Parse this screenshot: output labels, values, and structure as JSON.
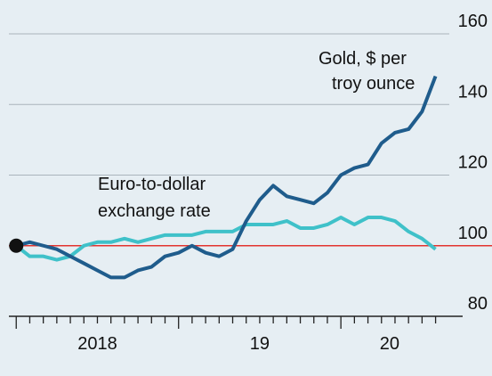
{
  "chart_data": {
    "type": "line",
    "x": [
      2018.0,
      2018.083,
      2018.167,
      2018.25,
      2018.333,
      2018.417,
      2018.5,
      2018.583,
      2018.667,
      2018.75,
      2018.833,
      2018.917,
      2019.0,
      2019.083,
      2019.167,
      2019.25,
      2019.333,
      2019.417,
      2019.5,
      2019.583,
      2019.667,
      2019.75,
      2019.833,
      2019.917,
      2020.0,
      2020.083,
      2020.167,
      2020.25,
      2020.333,
      2020.417,
      2020.5,
      2020.583
    ],
    "series": [
      {
        "name": "Gold, $ per troy ounce",
        "color": "#1f5c8c",
        "values": [
          100,
          101,
          100,
          99,
          97,
          95,
          93,
          91,
          91,
          93,
          94,
          97,
          98,
          100,
          98,
          97,
          99,
          107,
          113,
          117,
          114,
          113,
          112,
          115,
          120,
          122,
          123,
          129,
          132,
          133,
          138,
          148
        ]
      },
      {
        "name": "Euro-to-dollar exchange rate",
        "color": "#3fc1c9",
        "values": [
          100,
          97,
          97,
          96,
          97,
          100,
          101,
          101,
          102,
          101,
          102,
          103,
          103,
          103,
          104,
          104,
          104,
          106,
          106,
          106,
          107,
          105,
          105,
          106,
          108,
          106,
          108,
          108,
          107,
          104,
          102,
          99
        ]
      }
    ],
    "annotations": [
      [
        "Gold, $ per",
        "troy ounce"
      ],
      [
        "Euro-to-dollar",
        "exchange rate"
      ]
    ],
    "baseline": 100,
    "baseline_color": "#e3342f",
    "xlim": [
      2017.9,
      2020.75
    ],
    "xticks": [
      {
        "value": 2018.5,
        "label": "2018"
      },
      {
        "value": 2019.5,
        "label": "19"
      },
      {
        "value": 2020.3,
        "label": "20"
      }
    ],
    "ylim": [
      80,
      160
    ],
    "yticks": [
      80,
      100,
      120,
      140,
      160
    ],
    "grid": true
  }
}
